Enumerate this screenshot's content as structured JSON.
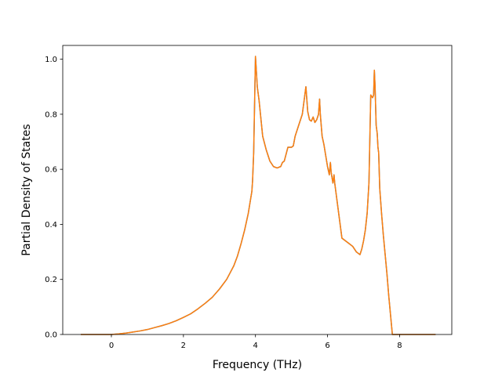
{
  "chart_data": {
    "type": "line",
    "title": "",
    "xlabel": "Frequency (THz)",
    "ylabel": "Partial Density of States",
    "xlim": [
      -1.35,
      9.45
    ],
    "ylim": [
      0.0,
      1.05
    ],
    "x_ticks": [
      0,
      2,
      4,
      6,
      8
    ],
    "x_tick_labels": [
      "0",
      "2",
      "4",
      "6",
      "8"
    ],
    "y_ticks": [
      0.0,
      0.2,
      0.4,
      0.6,
      0.8,
      1.0
    ],
    "y_tick_labels": [
      "0.0",
      "0.2",
      "0.4",
      "0.6",
      "0.8",
      "1.0"
    ],
    "grid": false,
    "legend": "none",
    "colors": [
      "#1f77b4",
      "#ff7f0e"
    ],
    "series": [
      {
        "x": [
          -0.85,
          -0.5,
          0,
          0.2,
          0.4,
          0.6,
          0.8,
          1.0,
          1.2,
          1.4,
          1.6,
          1.8,
          2.0,
          2.2,
          2.4,
          2.6,
          2.8,
          3.0,
          3.2,
          3.3,
          3.4,
          3.5,
          3.6,
          3.7,
          3.8,
          3.85,
          3.9,
          3.92,
          3.95,
          4.0,
          4.05,
          4.1,
          4.2,
          4.3,
          4.4,
          4.5,
          4.6,
          4.7,
          4.75,
          4.8,
          4.9,
          5.0,
          5.05,
          5.1,
          5.2,
          5.3,
          5.35,
          5.4,
          5.45,
          5.5,
          5.55,
          5.6,
          5.65,
          5.7,
          5.75,
          5.78,
          5.8,
          5.85,
          5.9,
          5.95,
          6.0,
          6.05,
          6.08,
          6.1,
          6.15,
          6.18,
          6.2,
          6.3,
          6.4,
          6.5,
          6.6,
          6.7,
          6.8,
          6.85,
          6.9,
          6.95,
          7.0,
          7.05,
          7.1,
          7.15,
          7.2,
          7.25,
          7.28,
          7.3,
          7.32,
          7.35,
          7.38,
          7.4,
          7.42,
          7.45,
          7.5,
          7.55,
          7.6,
          7.65,
          7.7,
          7.8,
          7.9,
          8.0,
          8.1,
          8.15,
          8.2,
          8.5,
          9.0
        ],
        "values": [
          0.0,
          0.0,
          0.0,
          0.002,
          0.005,
          0.009,
          0.013,
          0.018,
          0.025,
          0.032,
          0.04,
          0.05,
          0.062,
          0.075,
          0.093,
          0.113,
          0.135,
          0.165,
          0.2,
          0.225,
          0.25,
          0.285,
          0.33,
          0.38,
          0.44,
          0.48,
          0.52,
          0.56,
          0.66,
          1.01,
          0.9,
          0.85,
          0.72,
          0.67,
          0.63,
          0.61,
          0.605,
          0.61,
          0.625,
          0.63,
          0.68,
          0.68,
          0.685,
          0.72,
          0.76,
          0.8,
          0.85,
          0.9,
          0.81,
          0.78,
          0.775,
          0.79,
          0.77,
          0.78,
          0.8,
          0.855,
          0.8,
          0.72,
          0.69,
          0.65,
          0.61,
          0.58,
          0.625,
          0.59,
          0.55,
          0.58,
          0.55,
          0.45,
          0.35,
          0.34,
          0.33,
          0.32,
          0.3,
          0.295,
          0.29,
          0.31,
          0.34,
          0.38,
          0.44,
          0.55,
          0.87,
          0.86,
          0.87,
          0.96,
          0.9,
          0.76,
          0.73,
          0.68,
          0.66,
          0.53,
          0.44,
          0.36,
          0.29,
          0.22,
          0.14,
          0.0,
          0.0,
          0.0,
          0.0,
          0.0,
          0.0,
          0.0,
          0.0
        ]
      },
      {
        "x": [
          -0.85,
          -0.5,
          0,
          0.2,
          0.4,
          0.6,
          0.8,
          1.0,
          1.2,
          1.4,
          1.6,
          1.8,
          2.0,
          2.2,
          2.4,
          2.6,
          2.8,
          3.0,
          3.2,
          3.3,
          3.4,
          3.5,
          3.6,
          3.7,
          3.8,
          3.85,
          3.9,
          3.92,
          3.95,
          4.0,
          4.05,
          4.1,
          4.2,
          4.3,
          4.4,
          4.5,
          4.6,
          4.7,
          4.75,
          4.8,
          4.9,
          5.0,
          5.05,
          5.1,
          5.2,
          5.3,
          5.35,
          5.4,
          5.45,
          5.5,
          5.55,
          5.6,
          5.65,
          5.7,
          5.75,
          5.78,
          5.8,
          5.85,
          5.9,
          5.95,
          6.0,
          6.05,
          6.08,
          6.1,
          6.15,
          6.18,
          6.2,
          6.3,
          6.4,
          6.5,
          6.6,
          6.7,
          6.8,
          6.85,
          6.9,
          6.95,
          7.0,
          7.05,
          7.1,
          7.15,
          7.2,
          7.25,
          7.28,
          7.3,
          7.32,
          7.35,
          7.38,
          7.4,
          7.42,
          7.45,
          7.5,
          7.55,
          7.6,
          7.65,
          7.7,
          7.8,
          7.9,
          8.0,
          8.1,
          8.15,
          8.2,
          8.5,
          9.0
        ],
        "values": [
          0.0,
          0.0,
          0.0,
          0.002,
          0.005,
          0.009,
          0.013,
          0.018,
          0.025,
          0.032,
          0.04,
          0.05,
          0.062,
          0.075,
          0.093,
          0.113,
          0.135,
          0.165,
          0.2,
          0.225,
          0.25,
          0.285,
          0.33,
          0.38,
          0.44,
          0.48,
          0.52,
          0.56,
          0.66,
          1.01,
          0.9,
          0.85,
          0.72,
          0.67,
          0.63,
          0.61,
          0.605,
          0.61,
          0.625,
          0.63,
          0.68,
          0.68,
          0.685,
          0.72,
          0.76,
          0.8,
          0.85,
          0.9,
          0.81,
          0.78,
          0.775,
          0.79,
          0.77,
          0.78,
          0.8,
          0.855,
          0.8,
          0.72,
          0.69,
          0.65,
          0.61,
          0.58,
          0.625,
          0.59,
          0.55,
          0.58,
          0.55,
          0.45,
          0.35,
          0.34,
          0.33,
          0.32,
          0.3,
          0.295,
          0.29,
          0.31,
          0.34,
          0.38,
          0.44,
          0.55,
          0.87,
          0.86,
          0.87,
          0.96,
          0.9,
          0.76,
          0.73,
          0.68,
          0.66,
          0.53,
          0.44,
          0.36,
          0.29,
          0.22,
          0.14,
          0.0,
          0.0,
          0.0,
          0.0,
          0.0,
          0.0,
          0.0,
          0.0
        ]
      }
    ]
  }
}
